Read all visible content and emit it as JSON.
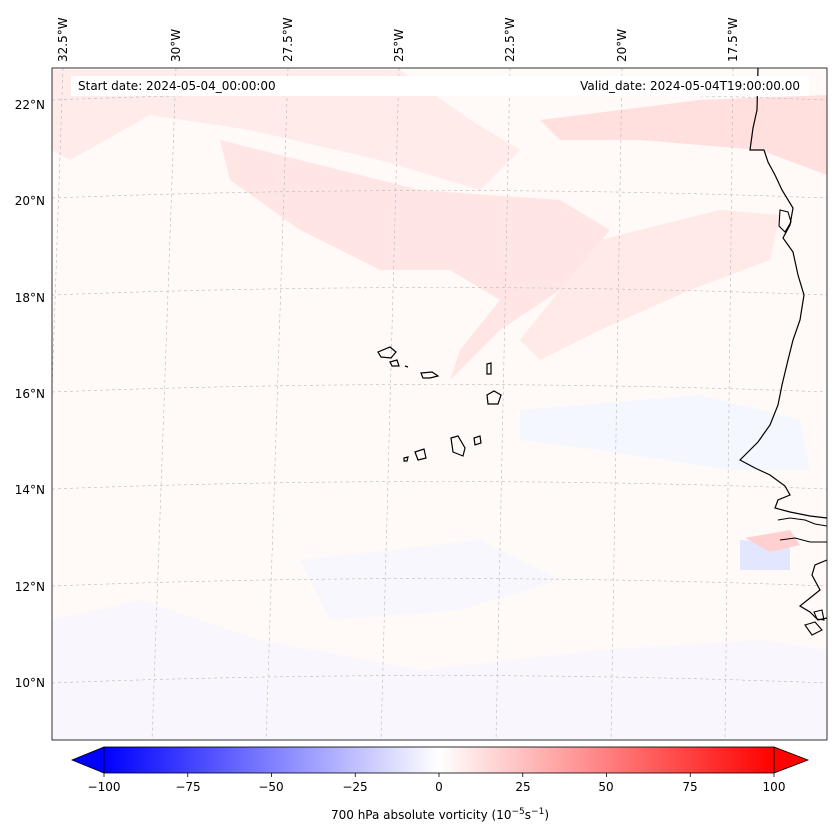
{
  "map": {
    "title_left": "Start date: 2024-05-04_00:00:00",
    "title_right": "Valid_date: 2024-05-04T19:00:00.00",
    "variable": "700 hPa absolute vorticity",
    "units_base": "(10",
    "units_exp1": "−5",
    "units_mid": "s",
    "units_exp2": "−1",
    "units_end": ")",
    "extent": {
      "lon_min": -33,
      "lon_max": -15.2,
      "lat_min": 8.9,
      "lat_max": 22.8
    },
    "lon_labels": [
      "32.5°W",
      "30°W",
      "27.5°W",
      "25°W",
      "22.5°W",
      "20°W",
      "17.5°W"
    ],
    "lat_labels": [
      "22°N",
      "20°N",
      "18°N",
      "16°N",
      "14°N",
      "12°N",
      "10°N"
    ],
    "features": [
      "Cabo Verde islands",
      "West African coastline (Mauritania, Senegal, Gambia, Guinea-Bissau)"
    ]
  },
  "colorbar": {
    "min": -100,
    "max": 100,
    "ticks": [
      "−100",
      "−75",
      "−50",
      "−25",
      "0",
      "25",
      "50",
      "75",
      "100"
    ],
    "cmap": "bwr",
    "color_min": "#0000ff",
    "color_mid": "#ffffff",
    "color_max": "#ff0000"
  }
}
